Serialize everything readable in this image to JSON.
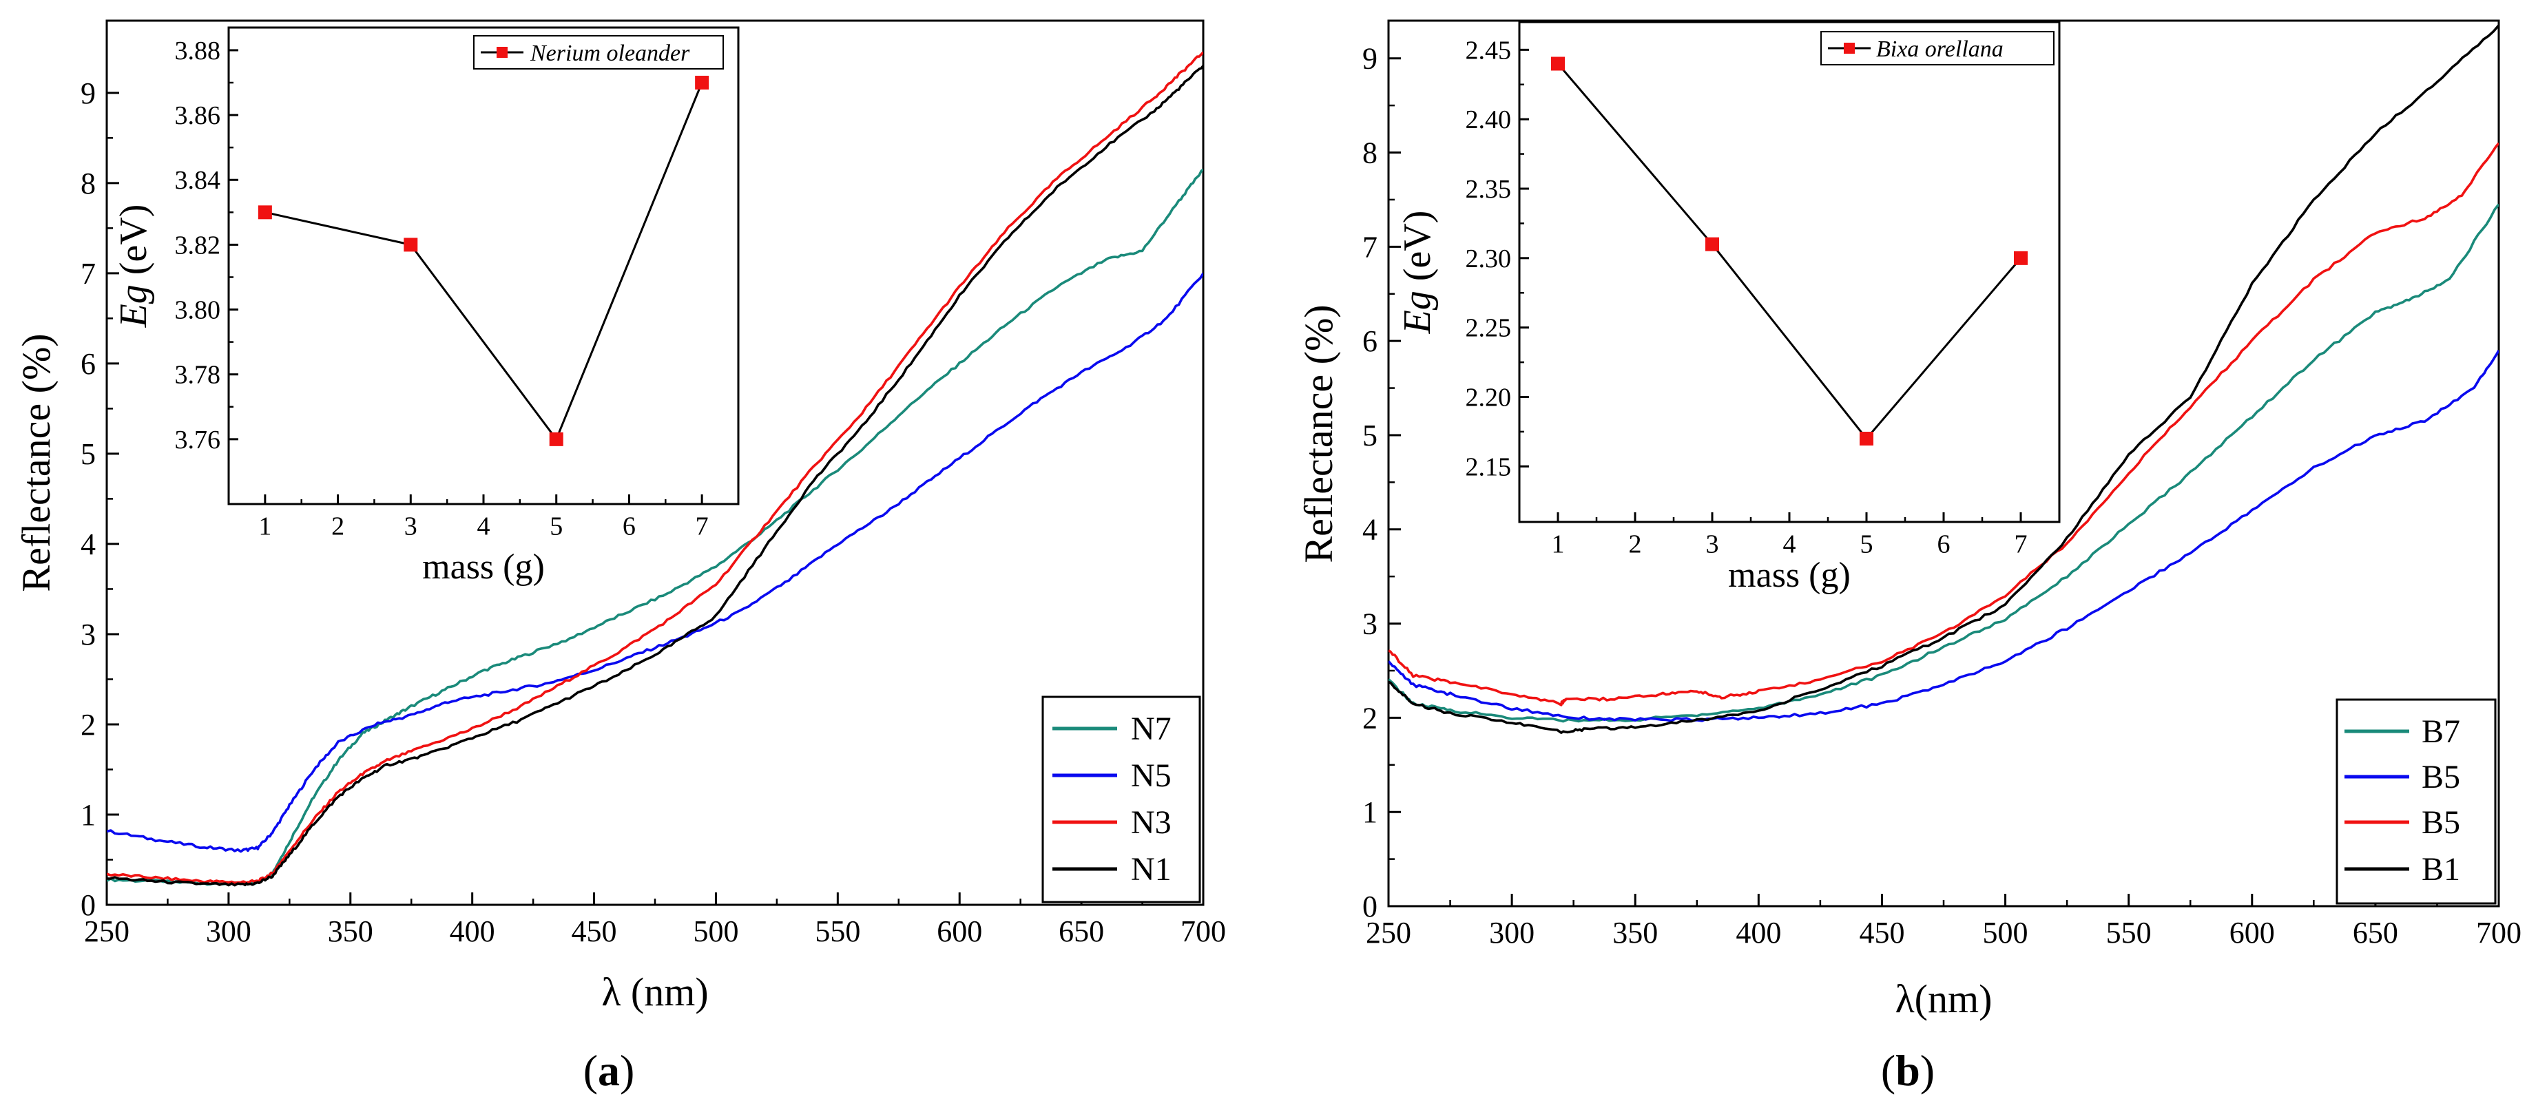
{
  "figure": {
    "panel_a_label": "a",
    "panel_b_label": "b",
    "inset_a_legend": "Nerium oleander",
    "inset_b_legend": "Bixa orellana",
    "inset_a_ylabel_italic": "Eg",
    "inset_a_ylabel_rest": " (eV)",
    "inset_b_ylabel_italic": "Eg",
    "inset_b_ylabel_rest": " (eV)"
  },
  "colors": {
    "teal": "#1a8a7a",
    "blue": "#0a0aef",
    "red": "#f01212",
    "black": "#000000",
    "marker": "#f01212"
  },
  "chart_data": [
    {
      "id": "a-main",
      "type": "line",
      "title": "",
      "xlabel": "λ (nm)",
      "ylabel": "Reflectance (%)",
      "xlim": [
        250,
        700
      ],
      "ylim": [
        0,
        9.8
      ],
      "xticks": [
        250,
        300,
        350,
        400,
        450,
        500,
        550,
        600,
        650,
        700
      ],
      "yticks": [
        0,
        1,
        2,
        3,
        4,
        5,
        6,
        7,
        8,
        9
      ],
      "legend_position": "bottom-right",
      "series": [
        {
          "name": "N7",
          "color": "teal",
          "x": [
            250,
            270,
            290,
            305,
            312,
            318,
            325,
            335,
            345,
            355,
            365,
            375,
            390,
            405,
            420,
            440,
            460,
            480,
            500,
            520,
            540,
            560,
            580,
            600,
            620,
            640,
            660,
            675,
            690,
            700
          ],
          "y": [
            0.28,
            0.26,
            0.24,
            0.23,
            0.25,
            0.35,
            0.7,
            1.2,
            1.6,
            1.9,
            2.05,
            2.2,
            2.4,
            2.6,
            2.75,
            2.95,
            3.2,
            3.45,
            3.75,
            4.15,
            4.6,
            5.05,
            5.55,
            6.0,
            6.45,
            6.85,
            7.15,
            7.25,
            7.8,
            8.15
          ]
        },
        {
          "name": "N5",
          "color": "blue",
          "x": [
            250,
            270,
            290,
            305,
            312,
            318,
            325,
            335,
            345,
            360,
            375,
            390,
            410,
            430,
            450,
            470,
            490,
            510,
            530,
            550,
            570,
            590,
            610,
            630,
            650,
            670,
            685,
            700
          ],
          "y": [
            0.82,
            0.72,
            0.64,
            0.6,
            0.63,
            0.8,
            1.1,
            1.5,
            1.8,
            2.0,
            2.1,
            2.25,
            2.35,
            2.45,
            2.6,
            2.8,
            3.0,
            3.25,
            3.6,
            4.0,
            4.35,
            4.75,
            5.15,
            5.55,
            5.9,
            6.2,
            6.5,
            7.0
          ]
        },
        {
          "name": "N3",
          "color": "red",
          "x": [
            250,
            270,
            290,
            305,
            312,
            318,
            325,
            335,
            345,
            355,
            365,
            380,
            400,
            420,
            440,
            460,
            480,
            500,
            520,
            540,
            560,
            580,
            600,
            620,
            640,
            660,
            680,
            690,
            700
          ],
          "y": [
            0.34,
            0.3,
            0.26,
            0.25,
            0.26,
            0.35,
            0.6,
            0.95,
            1.25,
            1.45,
            1.6,
            1.75,
            1.95,
            2.2,
            2.5,
            2.8,
            3.15,
            3.55,
            4.2,
            4.85,
            5.45,
            6.15,
            6.85,
            7.5,
            8.05,
            8.5,
            8.95,
            9.2,
            9.45
          ]
        },
        {
          "name": "N1",
          "color": "black",
          "x": [
            250,
            270,
            290,
            305,
            312,
            318,
            325,
            335,
            345,
            355,
            365,
            380,
            400,
            420,
            440,
            460,
            480,
            500,
            520,
            540,
            560,
            580,
            600,
            620,
            640,
            660,
            680,
            690,
            700
          ],
          "y": [
            0.3,
            0.26,
            0.23,
            0.22,
            0.24,
            0.32,
            0.55,
            0.9,
            1.2,
            1.4,
            1.55,
            1.65,
            1.85,
            2.05,
            2.3,
            2.55,
            2.85,
            3.2,
            3.95,
            4.7,
            5.3,
            6.0,
            6.75,
            7.4,
            7.95,
            8.4,
            8.8,
            9.05,
            9.3
          ]
        }
      ]
    },
    {
      "id": "a-inset",
      "type": "line",
      "title": "",
      "xlabel": "mass (g)",
      "ylabel": "Eg (eV)",
      "xlim": [
        0.5,
        7.5
      ],
      "ylim": [
        3.74,
        3.887
      ],
      "xticks": [
        1,
        2,
        3,
        4,
        5,
        6,
        7
      ],
      "yticks": [
        3.76,
        3.78,
        3.8,
        3.82,
        3.84,
        3.86,
        3.88
      ],
      "ytick_labels": [
        "3.76",
        "3.78",
        "3.80",
        "3.82",
        "3.84",
        "3.86",
        "3.88"
      ],
      "legend_position": "top-right",
      "series": [
        {
          "name": "Nerium oleander",
          "x": [
            1,
            3,
            5,
            7
          ],
          "y": [
            3.83,
            3.82,
            3.76,
            3.87
          ]
        }
      ]
    },
    {
      "id": "b-main",
      "type": "line",
      "title": "",
      "xlabel": "λ(nm)",
      "ylabel": "Reflectance (%)",
      "xlim": [
        250,
        700
      ],
      "ylim": [
        0,
        9.4
      ],
      "xticks": [
        250,
        300,
        350,
        400,
        450,
        500,
        550,
        600,
        650,
        700
      ],
      "yticks": [
        0,
        1,
        2,
        3,
        4,
        5,
        6,
        7,
        8,
        9
      ],
      "legend_position": "bottom-right",
      "series": [
        {
          "name": "B7",
          "color": "teal",
          "x": [
            250,
            260,
            275,
            300,
            325,
            350,
            375,
            400,
            425,
            450,
            475,
            500,
            525,
            550,
            575,
            600,
            625,
            650,
            665,
            680,
            700
          ],
          "y": [
            2.4,
            2.15,
            2.08,
            2.0,
            1.97,
            1.98,
            2.03,
            2.1,
            2.25,
            2.45,
            2.75,
            3.05,
            3.5,
            4.05,
            4.6,
            5.2,
            5.8,
            6.3,
            6.45,
            6.65,
            7.45
          ]
        },
        {
          "name": "B5",
          "color": "blue",
          "x": [
            250,
            260,
            275,
            300,
            325,
            350,
            375,
            400,
            425,
            450,
            475,
            500,
            525,
            550,
            575,
            600,
            625,
            650,
            670,
            690,
            700
          ],
          "y": [
            2.6,
            2.35,
            2.25,
            2.1,
            2.0,
            1.98,
            1.98,
            2.0,
            2.05,
            2.15,
            2.35,
            2.6,
            2.95,
            3.35,
            3.75,
            4.2,
            4.65,
            5.0,
            5.15,
            5.5,
            5.9
          ]
        },
        {
          "name": "B5",
          "color": "red",
          "x": [
            250,
            260,
            275,
            300,
            320,
            322,
            340,
            360,
            375,
            385,
            400,
            425,
            450,
            475,
            500,
            525,
            550,
            575,
            600,
            625,
            650,
            670,
            685,
            700
          ],
          "y": [
            2.72,
            2.45,
            2.38,
            2.25,
            2.15,
            2.2,
            2.2,
            2.25,
            2.28,
            2.22,
            2.28,
            2.4,
            2.6,
            2.9,
            3.3,
            3.85,
            4.6,
            5.3,
            6.0,
            6.65,
            7.15,
            7.3,
            7.55,
            8.1
          ]
        },
        {
          "name": "B1",
          "color": "black",
          "x": [
            250,
            260,
            275,
            300,
            320,
            330,
            350,
            375,
            400,
            425,
            450,
            475,
            500,
            525,
            550,
            575,
            600,
            625,
            650,
            675,
            700
          ],
          "y": [
            2.38,
            2.15,
            2.05,
            1.95,
            1.85,
            1.88,
            1.9,
            1.97,
            2.08,
            2.3,
            2.55,
            2.85,
            3.2,
            3.9,
            4.8,
            5.4,
            6.6,
            7.5,
            8.2,
            8.75,
            9.35
          ]
        }
      ]
    },
    {
      "id": "b-inset",
      "type": "line",
      "title": "",
      "xlabel": "mass (g)",
      "ylabel": "Eg (eV)",
      "xlim": [
        0.5,
        7.5
      ],
      "ylim": [
        2.11,
        2.47
      ],
      "xticks": [
        1,
        2,
        3,
        4,
        5,
        6,
        7
      ],
      "yticks": [
        2.15,
        2.2,
        2.25,
        2.3,
        2.35,
        2.4,
        2.45
      ],
      "ytick_labels": [
        "2.15",
        "2.20",
        "2.25",
        "2.30",
        "2.35",
        "2.40",
        "2.45"
      ],
      "legend_position": "top-right",
      "series": [
        {
          "name": "Bixa orellana",
          "x": [
            1,
            3,
            5,
            7
          ],
          "y": [
            2.44,
            2.31,
            2.17,
            2.3
          ]
        }
      ]
    }
  ]
}
